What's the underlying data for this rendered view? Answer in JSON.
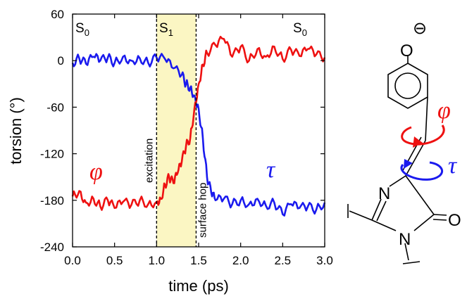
{
  "chart_data": {
    "type": "line",
    "xlabel": "time (ps)",
    "ylabel": "torsion (°)",
    "xlim": [
      0.0,
      3.0
    ],
    "ylim": [
      -240,
      60
    ],
    "xticks": [
      "0.0",
      "0.5",
      "1.0",
      "1.5",
      "2.0",
      "2.5",
      "3.0"
    ],
    "yticks": [
      "60",
      "0",
      "-60",
      "-120",
      "-180",
      "-240"
    ],
    "grid": false,
    "highlight_region": {
      "x": [
        1.0,
        1.47
      ],
      "color": "#fbf6c3"
    },
    "markers": [
      {
        "x": 1.0,
        "label": "excitation"
      },
      {
        "x": 1.47,
        "label": "surface hop"
      }
    ],
    "state_labels": [
      {
        "base": "S",
        "sub": "0",
        "x": 0.03
      },
      {
        "base": "S",
        "sub": "1",
        "x": 1.03
      },
      {
        "base": "S",
        "sub": "0",
        "x": 2.72
      }
    ],
    "series": [
      {
        "name": "τ",
        "color": "#1a1aee",
        "x": [
          0.0,
          0.08,
          0.16,
          0.25,
          0.33,
          0.42,
          0.5,
          0.6,
          0.7,
          0.8,
          0.9,
          1.0,
          1.1,
          1.2,
          1.3,
          1.35,
          1.4,
          1.45,
          1.5,
          1.55,
          1.6,
          1.65,
          1.7,
          1.8,
          1.9,
          2.0,
          2.1,
          2.2,
          2.3,
          2.4,
          2.5,
          2.6,
          2.7,
          2.8,
          2.9,
          3.0
        ],
        "y": [
          -3,
          3,
          -4,
          5,
          0,
          4,
          -3,
          5,
          0,
          3,
          -3,
          4,
          2,
          -10,
          -18,
          -30,
          -35,
          -45,
          -62,
          -100,
          -150,
          -170,
          -180,
          -178,
          -185,
          -180,
          -185,
          -178,
          -187,
          -183,
          -198,
          -185,
          -190,
          -188,
          -192,
          -183
        ]
      },
      {
        "name": "φ",
        "color": "#ee1111",
        "x": [
          0.0,
          0.08,
          0.16,
          0.25,
          0.33,
          0.42,
          0.5,
          0.6,
          0.7,
          0.8,
          0.9,
          1.0,
          1.05,
          1.1,
          1.15,
          1.2,
          1.25,
          1.3,
          1.35,
          1.4,
          1.45,
          1.5,
          1.55,
          1.6,
          1.7,
          1.8,
          1.9,
          2.0,
          2.1,
          2.2,
          2.3,
          2.4,
          2.5,
          2.6,
          2.7,
          2.8,
          2.9,
          3.0
        ],
        "y": [
          -175,
          -168,
          -183,
          -178,
          -188,
          -180,
          -190,
          -182,
          -186,
          -180,
          -185,
          -182,
          -178,
          -160,
          -150,
          -158,
          -145,
          -130,
          -110,
          -100,
          -62,
          -30,
          -5,
          10,
          20,
          28,
          5,
          18,
          0,
          15,
          5,
          18,
          2,
          14,
          6,
          15,
          8,
          4
        ]
      }
    ]
  },
  "molecule": {
    "phi_label": "φ",
    "tau_label": "τ",
    "oxygen_top": "O",
    "charge": "⊖",
    "nitrogen_ring": "N",
    "nitrogen_bottom": "N",
    "oxygen_right": "O"
  },
  "plot_labels": {
    "phi": "φ",
    "tau": "τ"
  }
}
